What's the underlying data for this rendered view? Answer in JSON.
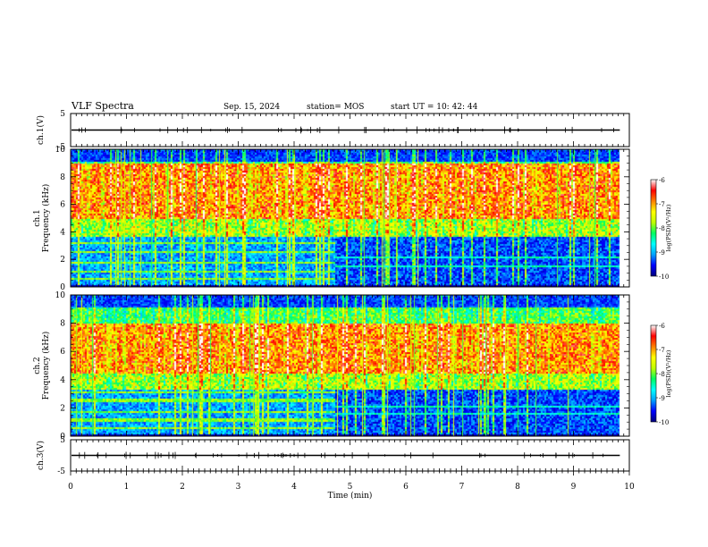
{
  "header": {
    "title": "VLF Spectra",
    "date": "Sep. 15, 2024",
    "station": "station= MOS",
    "start_ut": "start  UT =   10: 42: 44"
  },
  "colors": {
    "spectrogram_scale": [
      "#00007a",
      "#0000ff",
      "#00a0ff",
      "#00ffff",
      "#00ff60",
      "#c0ff00",
      "#ffff00",
      "#ff8000",
      "#ff0000",
      "#ffffff"
    ],
    "background_low": "#000033",
    "trace": "#000000"
  },
  "chart_data": [
    {
      "type": "line",
      "panel": "ch1-voltage",
      "ylabel": "ch.1(V)",
      "ylim": [
        -5,
        5
      ],
      "yticks": [
        "5",
        "-5"
      ],
      "xlim": [
        0,
        10
      ],
      "trace_level": 0,
      "note_shown": "near-constant trace with small spikes"
    },
    {
      "type": "heatmap",
      "panel": "ch1-spectrogram",
      "ylabel": "ch.1\nFrequency (kHz)",
      "ylabel_line1": "ch.1",
      "ylabel_line2": "Frequency (kHz)",
      "ylim": [
        0,
        10
      ],
      "yticks": [
        "0",
        "2",
        "4",
        "6",
        "8",
        "10"
      ],
      "xlim": [
        0,
        9.83
      ],
      "colorbar": {
        "label": "log(PSD)(V²/Hz)",
        "range": [
          -10,
          -6
        ],
        "ticks": [
          "-6",
          "-7",
          "-8",
          "-9",
          "-10"
        ]
      },
      "bands_kHz": {
        "strong_low": 5.0,
        "strong_high": 9.0,
        "cutoff_low": 3.7
      },
      "transition_min": 4.7,
      "end_min": 9.83
    },
    {
      "type": "heatmap",
      "panel": "ch2-spectrogram",
      "ylabel": "ch.2\nFrequency (kHz)",
      "ylabel_line1": "ch.2",
      "ylabel_line2": "Frequency (kHz)",
      "ylim": [
        0,
        10
      ],
      "yticks": [
        "0",
        "2",
        "4",
        "6",
        "8",
        "10"
      ],
      "xlim": [
        0,
        9.83
      ],
      "colorbar": {
        "label": "log(PSD)(V²/Hz)",
        "range": [
          -10,
          -6
        ],
        "ticks": [
          "-6",
          "-7",
          "-8",
          "-9",
          "-10"
        ]
      },
      "bands_kHz": {
        "strong_low": 4.5,
        "strong_high": 8.0,
        "cutoff_low": 3.4
      },
      "transition_min": 4.7,
      "end_min": 9.83
    },
    {
      "type": "line",
      "panel": "ch3-voltage",
      "ylabel": "ch.3(V)",
      "ylim": [
        -5,
        5
      ],
      "yticks": [
        "5",
        "-5"
      ],
      "xlim": [
        0,
        10
      ],
      "trace_level": 0,
      "note_shown": "near-constant trace"
    }
  ],
  "xaxis": {
    "label": "Time  (min)",
    "ticks": [
      "0",
      "1",
      "2",
      "3",
      "4",
      "5",
      "6",
      "7",
      "8",
      "9",
      "10"
    ],
    "range": [
      0,
      10
    ]
  }
}
